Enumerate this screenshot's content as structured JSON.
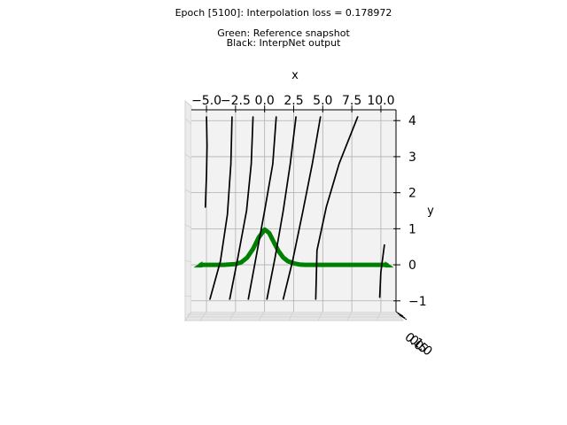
{
  "figure": {
    "title": "Epoch [5100]: Interpolation loss = 0.178972",
    "legend_line1": "Green: Reference snapshot",
    "legend_line2": "Black: InterpNet output"
  },
  "chart_data": {
    "type": "line",
    "projection": "3d",
    "title": "Epoch [5100]: Interpolation loss = 0.178972",
    "xlabel": "x",
    "ylabel": "y",
    "xlim": [
      -6.3,
      11.3
    ],
    "ylim": [
      -1.3,
      4.3
    ],
    "xticks": [
      -5.0,
      -2.5,
      0.0,
      2.5,
      5.0,
      7.5,
      10.0
    ],
    "xtick_labels": [
      "−5.0",
      "−2.5",
      "0.0",
      "2.5",
      "5.0",
      "7.5",
      "10.0"
    ],
    "yticks": [
      -1,
      0,
      1,
      2,
      3,
      4
    ],
    "ytick_labels": [
      "−1",
      "0",
      "1",
      "2",
      "3",
      "4"
    ],
    "zaxis_tick_labels_overlapping": [
      "0.0",
      "0.5",
      "1.0"
    ],
    "grid": true,
    "colors": {
      "reference": "#008000",
      "interpnet": "#000000",
      "pane": "#f2f2f2",
      "grid": "#b0b0b0"
    },
    "series": [
      {
        "name": "Reference snapshot",
        "color": "#008000",
        "points": [
          [
            -5.5,
            0.0
          ],
          [
            -4.5,
            0.0
          ],
          [
            -3.5,
            0.0
          ],
          [
            -2.5,
            0.02
          ],
          [
            -2.0,
            0.07
          ],
          [
            -1.5,
            0.2
          ],
          [
            -1.0,
            0.44
          ],
          [
            -0.5,
            0.76
          ],
          [
            0.0,
            0.98
          ],
          [
            0.4,
            0.88
          ],
          [
            0.8,
            0.62
          ],
          [
            1.2,
            0.38
          ],
          [
            1.6,
            0.2
          ],
          [
            2.0,
            0.1
          ],
          [
            2.5,
            0.04
          ],
          [
            3.0,
            0.01
          ],
          [
            3.5,
            0.0
          ],
          [
            5.0,
            0.0
          ],
          [
            7.0,
            0.0
          ],
          [
            9.0,
            0.0
          ],
          [
            10.5,
            0.0
          ]
        ]
      },
      {
        "color": "#000000",
        "points": [
          [
            -5.0,
            4.1
          ],
          [
            -4.95,
            3.3
          ],
          [
            -5.0,
            2.5
          ],
          [
            -5.1,
            1.6
          ]
        ]
      },
      {
        "color": "#000000",
        "points": [
          [
            -2.8,
            4.1
          ],
          [
            -2.9,
            2.8
          ],
          [
            -3.2,
            1.4
          ],
          [
            -3.8,
            0.1
          ],
          [
            -4.7,
            -0.95
          ]
        ]
      },
      {
        "color": "#000000",
        "points": [
          [
            -1.0,
            4.1
          ],
          [
            -1.15,
            2.8
          ],
          [
            -1.55,
            1.5
          ],
          [
            -2.3,
            0.2
          ],
          [
            -3.0,
            -0.95
          ]
        ]
      },
      {
        "color": "#000000",
        "points": [
          [
            1.0,
            4.1
          ],
          [
            0.7,
            2.8
          ],
          [
            0.0,
            1.5
          ],
          [
            -0.8,
            0.1
          ],
          [
            -1.4,
            -0.95
          ]
        ]
      },
      {
        "color": "#000000",
        "points": [
          [
            2.7,
            4.1
          ],
          [
            2.2,
            2.8
          ],
          [
            1.6,
            1.5
          ],
          [
            0.9,
            0.2
          ],
          [
            0.2,
            -0.95
          ]
        ]
      },
      {
        "color": "#000000",
        "points": [
          [
            4.8,
            4.1
          ],
          [
            4.1,
            2.8
          ],
          [
            3.3,
            1.5
          ],
          [
            2.4,
            0.1
          ],
          [
            1.6,
            -0.95
          ]
        ]
      },
      {
        "color": "#000000",
        "points": [
          [
            8.0,
            4.1
          ],
          [
            6.4,
            2.8
          ],
          [
            5.3,
            1.6
          ],
          [
            4.5,
            0.4
          ],
          [
            4.4,
            -0.95
          ]
        ]
      },
      {
        "color": "#000000",
        "points": [
          [
            10.3,
            0.55
          ],
          [
            10.0,
            -0.2
          ],
          [
            9.9,
            -0.9
          ]
        ]
      }
    ]
  }
}
